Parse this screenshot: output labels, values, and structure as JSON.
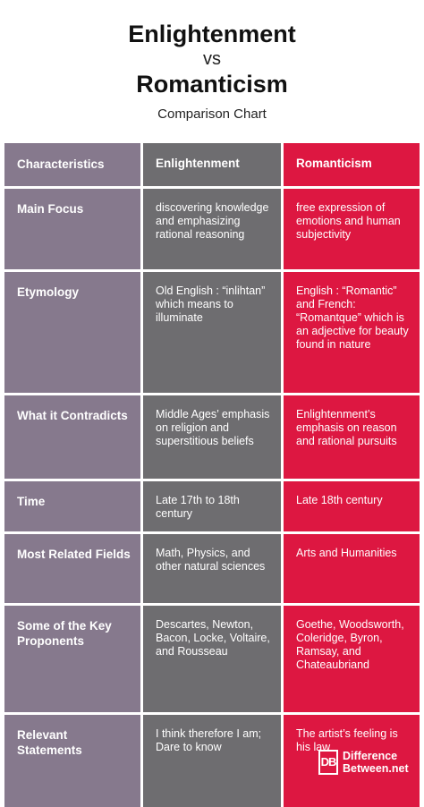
{
  "title": {
    "line1": "Enlightenment",
    "vs": "vs",
    "line2": "Romanticism",
    "subtitle": "Comparison Chart"
  },
  "table": {
    "headers": [
      "Characteristics",
      "Enlightenment",
      "Romanticism"
    ],
    "rows": [
      {
        "characteristic": "Main Focus",
        "enlightenment": "discovering knowledge and emphasizing rational reasoning",
        "romanticism": "free expression of emotions and human subjectivity"
      },
      {
        "characteristic": "Etymology",
        "enlightenment": "Old English : “inlihtan” which means to illuminate",
        "romanticism": "English : “Romantic” and French: “Romantque” which is an adjective for beauty found in nature"
      },
      {
        "characteristic": "What it Contradicts",
        "enlightenment": "Middle Ages’ emphasis on religion and superstitious beliefs",
        "romanticism": "Enlightenment’s emphasis on reason and rational pursuits"
      },
      {
        "characteristic": "Time",
        "enlightenment": "Late 17th to 18th century",
        "romanticism": "Late 18th century"
      },
      {
        "characteristic": "Most Related Fields",
        "enlightenment": "Math, Physics, and other natural sciences",
        "romanticism": "Arts and Humanities"
      },
      {
        "characteristic": "Some of the Key Proponents",
        "enlightenment": "Descartes, Newton, Bacon, Locke, Voltaire, and Rousseau",
        "romanticism": "Goethe, Woodsworth, Coleridge, Byron, Ramsay, and Chateaubriand"
      },
      {
        "characteristic": "Relevant Statements",
        "enlightenment": "I think therefore I am; Dare to know",
        "romanticism": "The artist’s feeling is his law"
      }
    ]
  },
  "logo": {
    "mark": "DB",
    "line1": "Difference",
    "line2": "Between.net"
  },
  "colors": {
    "characteristics_column": "#86798d",
    "enlightenment_column": "#6e6d70",
    "romanticism_column": "#dd1741"
  }
}
